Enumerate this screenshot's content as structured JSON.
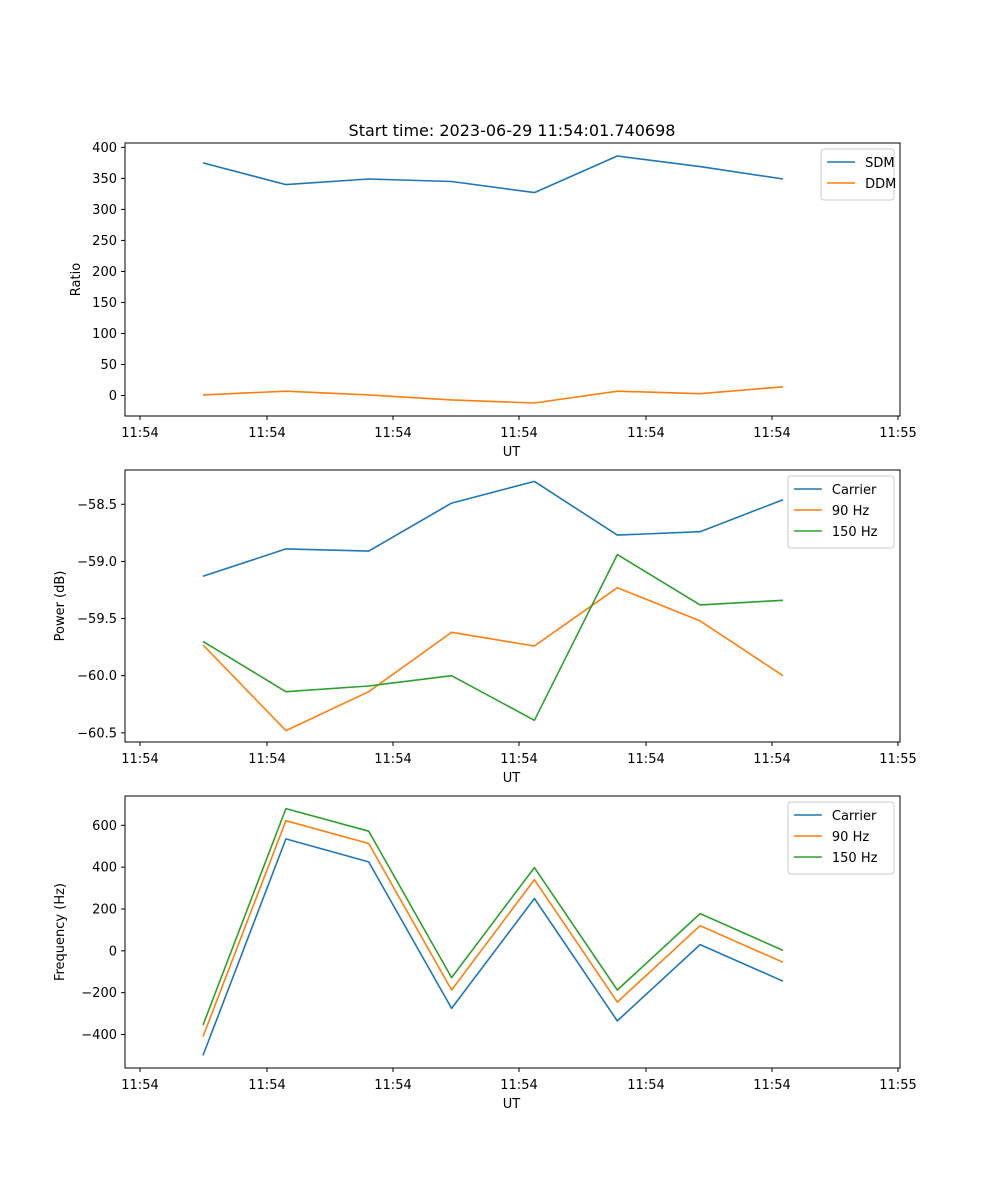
{
  "figure_title": "Start time: 2023-06-29 11:54:01.740698",
  "chart_data": [
    {
      "type": "line",
      "title": "Start time: 2023-06-29 11:54:01.740698",
      "xlabel": "UT",
      "ylabel": "Ratio",
      "x_tick_labels": [
        "11:54",
        "11:54",
        "11:54",
        "11:54",
        "11:54",
        "11:54",
        "11:54"
      ],
      "y_ticks": [
        0,
        50,
        100,
        150,
        200,
        250,
        300,
        350,
        400
      ],
      "ylim": [
        -33,
        407
      ],
      "x_points": [
        1,
        2,
        3,
        4,
        5,
        6,
        7,
        8
      ],
      "legend_position": "top-right",
      "series": [
        {
          "name": "SDM",
          "color": "#1f77b4",
          "values": [
            375,
            340,
            349,
            345,
            327,
            386,
            369,
            349
          ]
        },
        {
          "name": "DDM",
          "color": "#ff7f0e",
          "values": [
            1,
            7,
            1,
            -7,
            -12,
            7,
            3,
            14
          ]
        }
      ]
    },
    {
      "type": "line",
      "xlabel": "UT",
      "ylabel": "Power (dB)",
      "x_tick_labels": [
        "11:54",
        "11:54",
        "11:54",
        "11:54",
        "11:54",
        "11:54",
        "11:54"
      ],
      "y_ticks": [
        -60.5,
        -60.0,
        -59.5,
        -59.0,
        -58.5
      ],
      "y_tick_labels": [
        "−60.5",
        "−60.0",
        "−59.5",
        "−59.0",
        "−58.5"
      ],
      "ylim": [
        -60.58,
        -58.2
      ],
      "x_points": [
        1,
        2,
        3,
        4,
        5,
        6,
        7,
        8
      ],
      "legend_position": "top-right",
      "series": [
        {
          "name": "Carrier",
          "color": "#1f77b4",
          "values": [
            -59.13,
            -58.89,
            -58.91,
            -58.49,
            -58.3,
            -58.77,
            -58.74,
            -58.46
          ]
        },
        {
          "name": "90 Hz",
          "color": "#ff7f0e",
          "values": [
            -59.73,
            -60.48,
            -60.14,
            -59.62,
            -59.74,
            -59.23,
            -59.52,
            -60.0
          ]
        },
        {
          "name": "150 Hz",
          "color": "#2ca02c",
          "values": [
            -59.7,
            -60.14,
            -60.09,
            -60.0,
            -60.39,
            -58.94,
            -59.38,
            -59.34
          ]
        }
      ]
    },
    {
      "type": "line",
      "xlabel": "UT",
      "ylabel": "Frequency (Hz)",
      "x_tick_labels": [
        "11:54",
        "11:54",
        "11:54",
        "11:54",
        "11:54",
        "11:54",
        "11:54"
      ],
      "y_ticks": [
        -400,
        -200,
        0,
        200,
        400,
        600
      ],
      "y_tick_labels": [
        "−400",
        "−200",
        "0",
        "200",
        "400",
        "600"
      ],
      "ylim": [
        -560,
        740
      ],
      "x_points": [
        1,
        2,
        3,
        4,
        5,
        6,
        7,
        8
      ],
      "legend_position": "top-right",
      "series": [
        {
          "name": "Carrier",
          "color": "#1f77b4",
          "values": [
            -500,
            535,
            425,
            -275,
            250,
            -335,
            30,
            -145
          ]
        },
        {
          "name": "90 Hz",
          "color": "#ff7f0e",
          "values": [
            -410,
            622,
            513,
            -187,
            340,
            -245,
            120,
            -55
          ]
        },
        {
          "name": "150 Hz",
          "color": "#2ca02c",
          "values": [
            -355,
            680,
            572,
            -128,
            398,
            -187,
            178,
            2
          ]
        }
      ]
    }
  ]
}
